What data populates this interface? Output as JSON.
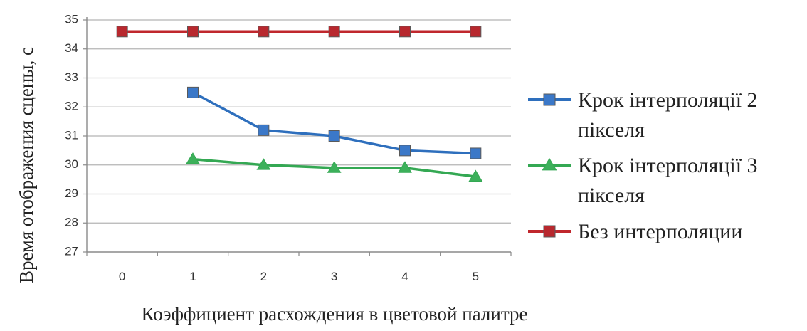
{
  "chart_data": {
    "type": "line",
    "categories": [
      "0",
      "1",
      "2",
      "3",
      "4",
      "5"
    ],
    "ylim": [
      27,
      35
    ],
    "yticks": [
      "27",
      "28",
      "29",
      "30",
      "31",
      "32",
      "33",
      "34",
      "35"
    ],
    "xlabel": "Коэффициент расхождения в цветовой палитре",
    "ylabel": "Время отображения сцены, с",
    "grid": "horizontal",
    "legend_position": "right",
    "series": [
      {
        "name_lines": [
          "Крок інтерполяції 2",
          "пікселя"
        ],
        "marker": "square",
        "color": "#2e6fbd",
        "marker_color": "#3b78c8",
        "values": [
          null,
          32.5,
          31.2,
          31.0,
          30.5,
          30.4
        ]
      },
      {
        "name_lines": [
          "Крок інтерполяції 3",
          "пікселя"
        ],
        "marker": "triangle",
        "color": "#34a853",
        "marker_color": "#3cb05a",
        "values": [
          null,
          30.2,
          30.0,
          29.9,
          29.9,
          29.6
        ]
      },
      {
        "name_lines": [
          "Без интерполяции"
        ],
        "marker": "square",
        "color": "#c0272d",
        "marker_color": "#b8282e",
        "values": [
          34.6,
          34.6,
          34.6,
          34.6,
          34.6,
          34.6
        ]
      }
    ]
  }
}
